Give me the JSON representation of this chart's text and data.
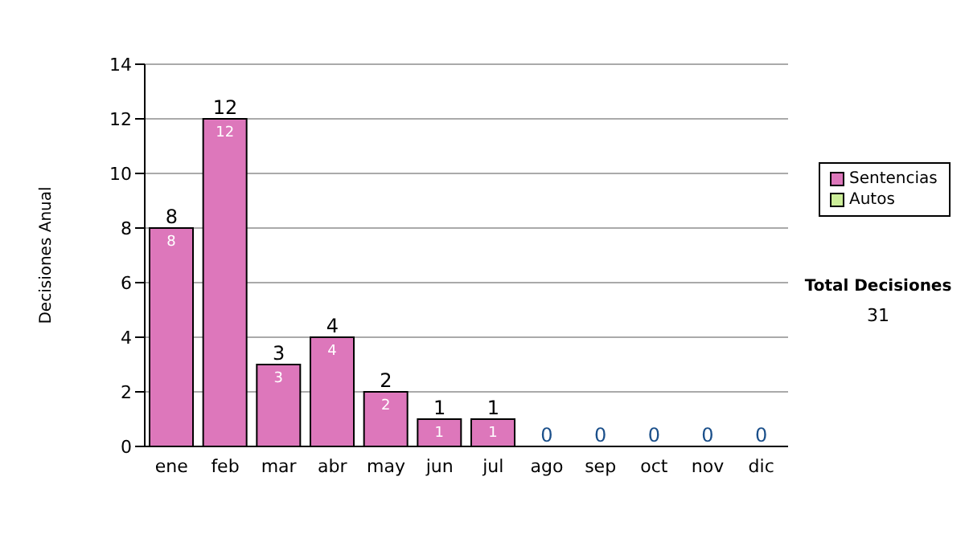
{
  "chart_data": {
    "type": "bar",
    "ylabel": "Decisiones Anual",
    "categories": [
      "ene",
      "feb",
      "mar",
      "abr",
      "may",
      "jun",
      "jul",
      "ago",
      "sep",
      "oct",
      "nov",
      "dic"
    ],
    "series": [
      {
        "name": "Sentencias",
        "color": "#dd77bb",
        "values": [
          8,
          12,
          3,
          4,
          2,
          1,
          1,
          0,
          0,
          0,
          0,
          0
        ],
        "value_labels": [
          "8",
          "12",
          "3",
          "4",
          "2",
          "1",
          "1",
          null,
          null,
          null,
          null,
          null
        ]
      },
      {
        "name": "Autos",
        "color": "#ccee99",
        "values": [
          0,
          0,
          0,
          0,
          0,
          0,
          0,
          0,
          0,
          0,
          0,
          0
        ]
      }
    ],
    "stacked": true,
    "totals": [
      "8",
      "12",
      "3",
      "4",
      "2",
      "1",
      "1",
      "0",
      "0",
      "0",
      "0",
      "0"
    ],
    "ylim": [
      0,
      14
    ],
    "yticks": [
      0,
      2,
      4,
      6,
      8,
      10,
      12,
      14
    ],
    "grid": "y",
    "legend": "right",
    "annotations": [
      "Total Decisiones",
      "31"
    ]
  }
}
